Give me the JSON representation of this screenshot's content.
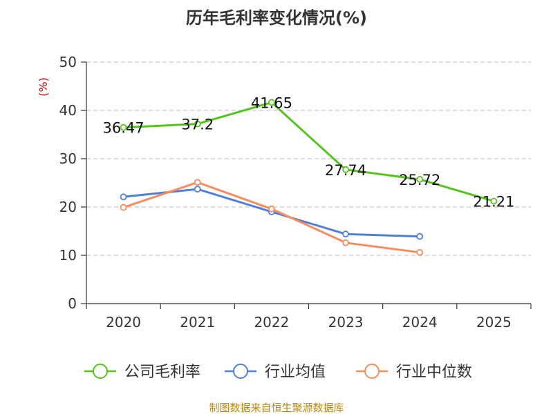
{
  "chart_data": {
    "type": "line",
    "title": "历年毛利率变化情况(%)",
    "ylabel": "(%)",
    "xlabel": "",
    "categories": [
      "2020",
      "2021",
      "2022",
      "2023",
      "2024",
      "2025"
    ],
    "ylim": [
      0,
      50
    ],
    "yticks": [
      0,
      10,
      20,
      30,
      40,
      50
    ],
    "grid": true,
    "legend_position": "bottom",
    "series": [
      {
        "name": "公司毛利率",
        "color": "#52c41a",
        "values": [
          36.47,
          37.2,
          41.65,
          27.74,
          25.72,
          21.21
        ],
        "labels": [
          "36.47",
          "37.2",
          "41.65",
          "27.74",
          "25.72",
          "21.21"
        ]
      },
      {
        "name": "行业均值",
        "color": "#4e7fdc",
        "values": [
          22.1,
          23.7,
          19.0,
          14.4,
          13.9,
          null
        ]
      },
      {
        "name": "行业中位数",
        "color": "#f98c5c",
        "values": [
          19.9,
          25.1,
          19.6,
          12.6,
          10.6,
          null
        ]
      }
    ],
    "source": "制图数据来自恒生聚源数据库"
  }
}
